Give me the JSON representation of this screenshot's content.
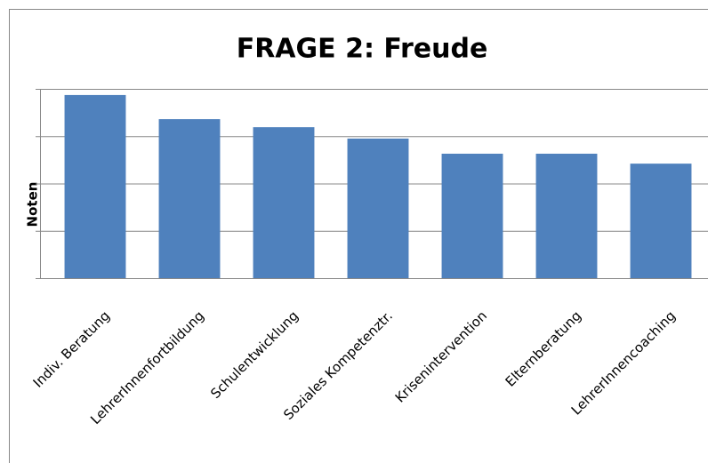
{
  "chart_data": {
    "type": "bar",
    "title": "FRAGE 2: Freude",
    "y_label": "Noten",
    "categories": [
      "Indiv. Beratung",
      "LehrerInnenfortbildung",
      "Schulentwicklung",
      "Soziales Kompetenztr.",
      "Krisenintervention",
      "Elternberatung",
      "LehrerInnencoaching"
    ],
    "values": [
      3.87,
      3.36,
      3.19,
      2.95,
      2.63,
      2.63,
      2.42
    ],
    "color": "#4f81bd",
    "ylim": [
      0,
      4
    ],
    "yticks": [
      0,
      1,
      2,
      3,
      4
    ],
    "grid": true
  }
}
